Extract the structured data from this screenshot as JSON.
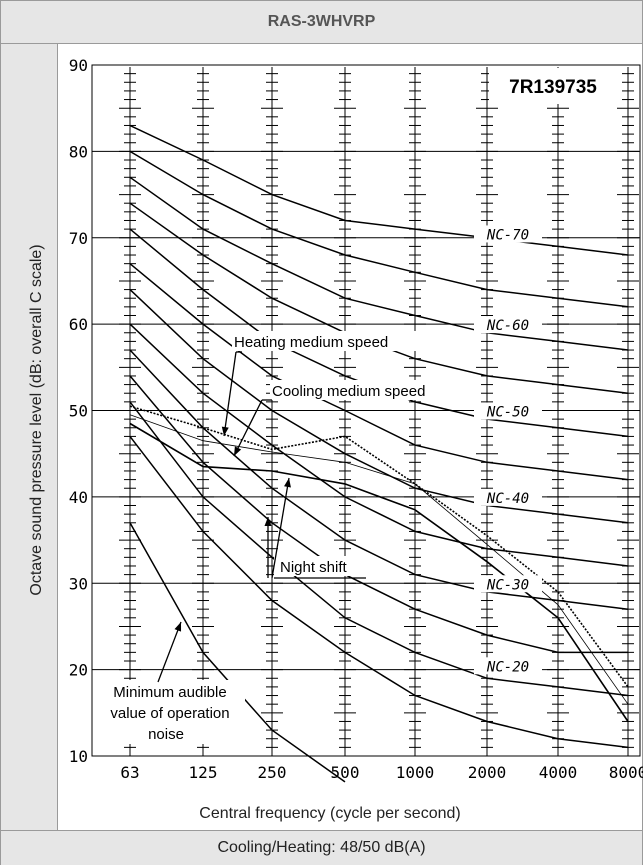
{
  "header": {
    "title": "RAS-3WHVRP"
  },
  "footer": {
    "text": "Cooling/Heating: 48/50 dB(A)"
  },
  "chart_data": {
    "type": "line",
    "code_label": "7R139735",
    "xlabel": "Central frequency (cycle per second)",
    "ylabel": "Octave sound pressure level (dB: overall C scale)",
    "x": [
      "63",
      "125",
      "250",
      "500",
      "1000",
      "2000",
      "4000",
      "8000"
    ],
    "ylim": [
      10,
      90
    ],
    "yticks": [
      10,
      20,
      30,
      40,
      50,
      60,
      70,
      80,
      90
    ],
    "nc_curves": [
      {
        "label": "NC-70",
        "values": [
          83,
          79,
          75,
          72,
          71,
          70,
          69,
          68
        ]
      },
      {
        "values": [
          80,
          75,
          71,
          68,
          66,
          64,
          63,
          62
        ]
      },
      {
        "label": "NC-60",
        "values": [
          77,
          71,
          67,
          63,
          61,
          59,
          58,
          57
        ]
      },
      {
        "values": [
          74,
          68,
          63,
          59,
          56,
          54,
          53,
          52
        ]
      },
      {
        "label": "NC-50",
        "values": [
          71,
          64,
          58,
          54,
          51,
          49,
          48,
          47
        ]
      },
      {
        "values": [
          67,
          60,
          54,
          50,
          46,
          44,
          43,
          42
        ]
      },
      {
        "label": "NC-40",
        "values": [
          64,
          56,
          50,
          45,
          41,
          39,
          38,
          37
        ]
      },
      {
        "values": [
          60,
          52,
          46,
          40,
          36,
          34,
          33,
          32
        ]
      },
      {
        "label": "NC-30",
        "values": [
          57,
          48,
          41,
          35,
          31,
          29,
          28,
          27
        ]
      },
      {
        "values": [
          54,
          44,
          37,
          31,
          27,
          24,
          22,
          22
        ]
      },
      {
        "label": "NC-20",
        "values": [
          51,
          40,
          33,
          26,
          22,
          19,
          18,
          17
        ]
      },
      {
        "values": [
          47,
          36,
          28,
          22,
          17,
          14,
          12,
          11
        ]
      }
    ],
    "min_audible": {
      "values": [
        37,
        22,
        13,
        7
      ]
    },
    "series": [
      {
        "name": "Heating medium speed",
        "values": [
          50.5,
          48,
          45.5,
          47,
          41.5,
          35.5,
          29,
          18
        ],
        "style": "dotted"
      },
      {
        "name": "Cooling medium speed",
        "values": [
          49.5,
          46.5,
          45.2,
          44,
          41.5,
          34.5,
          27.5,
          16
        ],
        "style": "thin"
      },
      {
        "name": "Night shift",
        "values": [
          48.5,
          43.5,
          43,
          41.5,
          38.5,
          32.5,
          26,
          14
        ],
        "style": "solid"
      }
    ],
    "annotations": {
      "heating": "Heating medium speed",
      "cooling": "Cooling medium speed",
      "night": "Night shift",
      "min1": "Minimum audible",
      "min2": "value of operation",
      "min3": "noise"
    },
    "grid": true
  }
}
